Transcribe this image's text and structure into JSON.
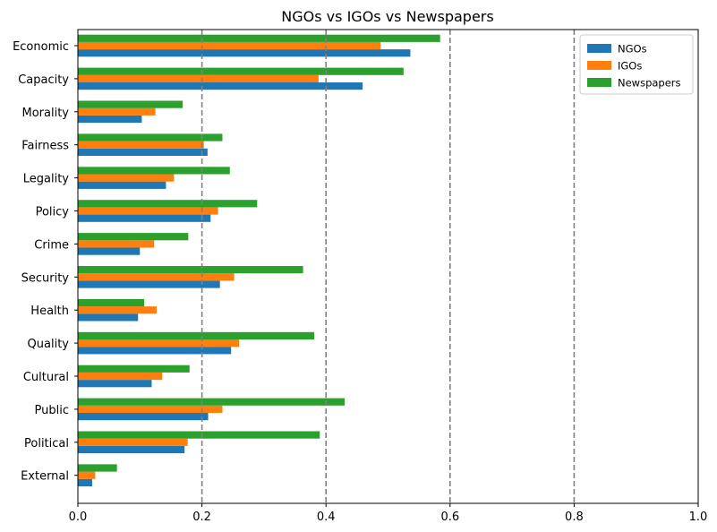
{
  "chart_data": {
    "type": "bar",
    "orientation": "horizontal",
    "title": "NGOs vs IGOs vs Newspapers",
    "xlabel": "",
    "ylabel": "",
    "xlim": [
      0,
      1.0
    ],
    "x_ticks": [
      "0.0",
      "0.2",
      "0.4",
      "0.6",
      "0.8",
      "1.0"
    ],
    "reference_lines_x": [
      0.2,
      0.4,
      0.6,
      0.8
    ],
    "reference_line_style": "dashed",
    "grid": false,
    "legend_position": "top-right",
    "categories": [
      "Economic",
      "Capacity",
      "Morality",
      "Fairness",
      "Legality",
      "Policy",
      "Crime",
      "Security",
      "Health",
      "Quality",
      "Cultural",
      "Public",
      "Political",
      "External"
    ],
    "series": [
      {
        "name": "NGOs",
        "color": "#1f77b4",
        "values": [
          0.536,
          0.459,
          0.103,
          0.209,
          0.142,
          0.214,
          0.1,
          0.229,
          0.097,
          0.247,
          0.119,
          0.21,
          0.172,
          0.023
        ]
      },
      {
        "name": "IGOs",
        "color": "#ff7f0e",
        "values": [
          0.488,
          0.388,
          0.125,
          0.203,
          0.155,
          0.226,
          0.123,
          0.252,
          0.127,
          0.26,
          0.136,
          0.233,
          0.177,
          0.028
        ]
      },
      {
        "name": "Newspapers",
        "color": "#2ca02c",
        "values": [
          0.584,
          0.525,
          0.169,
          0.233,
          0.245,
          0.289,
          0.178,
          0.363,
          0.107,
          0.381,
          0.18,
          0.43,
          0.39,
          0.063
        ]
      }
    ]
  }
}
